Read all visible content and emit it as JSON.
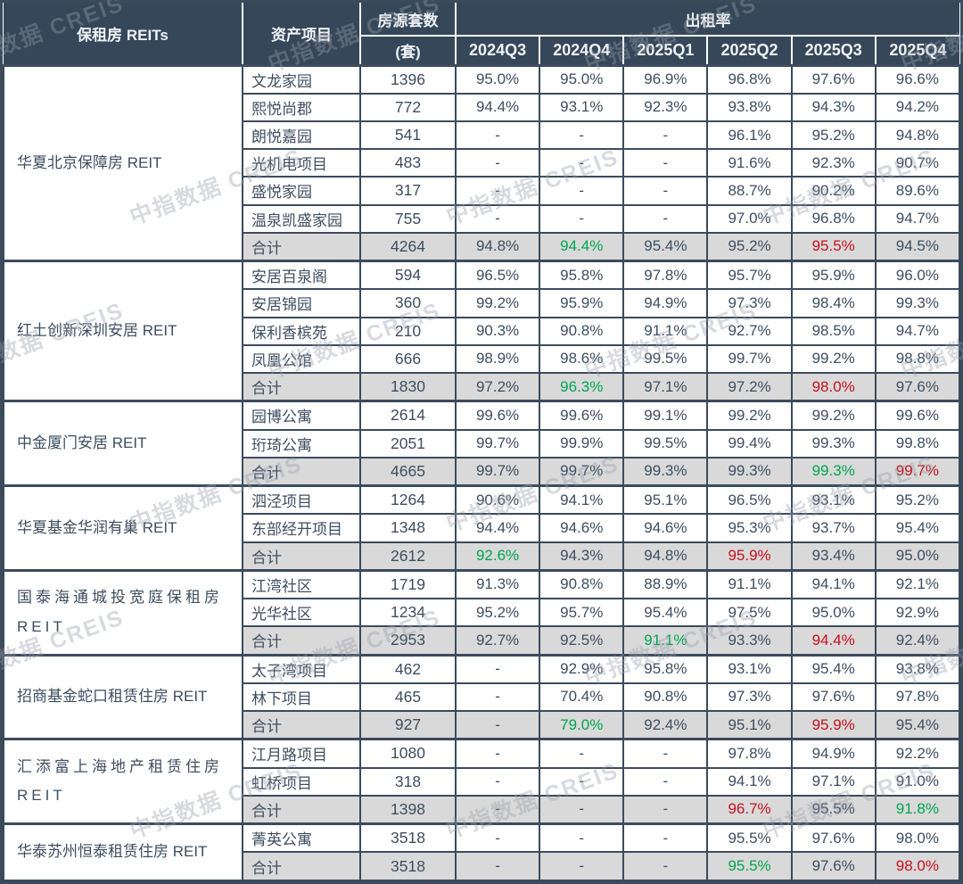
{
  "watermark": {
    "text": "中指数据 CREIS"
  },
  "colors": {
    "header_bg": "#36475A",
    "header_text": "#EFF3F6",
    "body_text": "#3E4E60",
    "border": "#3C4B5C",
    "total_row_bg": "#D9D9D9",
    "highlight_green": "#00A651",
    "highlight_red": "#C8101E"
  },
  "chart_data": {
    "type": "table",
    "headers": {
      "reits": "保租房 REITs",
      "asset": "资产项目",
      "units_line1": "房源套数",
      "units_line2": "(套)",
      "occupancy": "出租率",
      "quarters": [
        "2024Q3",
        "2024Q4",
        "2025Q1",
        "2025Q2",
        "2025Q3",
        "2025Q4"
      ]
    },
    "total_label": "合计",
    "groups": [
      {
        "reit": "华夏北京保障房 REIT",
        "projects": [
          {
            "name": "文龙家园",
            "units": "1396",
            "rates": [
              "95.0%",
              "95.0%",
              "96.9%",
              "96.8%",
              "97.6%",
              "96.6%"
            ]
          },
          {
            "name": "熙悦尚郡",
            "units": "772",
            "rates": [
              "94.4%",
              "93.1%",
              "92.3%",
              "93.8%",
              "94.3%",
              "94.2%"
            ]
          },
          {
            "name": "朗悦嘉园",
            "units": "541",
            "rates": [
              "-",
              "-",
              "-",
              "96.1%",
              "95.2%",
              "94.8%"
            ]
          },
          {
            "name": "光机电项目",
            "units": "483",
            "rates": [
              "-",
              "-",
              "-",
              "91.6%",
              "92.3%",
              "90.7%"
            ]
          },
          {
            "name": "盛悦家园",
            "units": "317",
            "rates": [
              "-",
              "-",
              "-",
              "88.7%",
              "90.2%",
              "89.6%"
            ]
          },
          {
            "name": "温泉凯盛家园",
            "units": "755",
            "rates": [
              "-",
              "-",
              "-",
              "97.0%",
              "96.8%",
              "94.7%"
            ]
          }
        ],
        "total": {
          "units": "4264",
          "rates": [
            "94.8%",
            "94.4%",
            "95.4%",
            "95.2%",
            "95.5%",
            "94.5%"
          ],
          "colors": [
            "",
            "green",
            "",
            "",
            "red",
            ""
          ]
        }
      },
      {
        "reit": "红土创新深圳安居 REIT",
        "projects": [
          {
            "name": "安居百泉阁",
            "units": "594",
            "rates": [
              "96.5%",
              "95.8%",
              "97.8%",
              "95.7%",
              "95.9%",
              "96.0%"
            ]
          },
          {
            "name": "安居锦园",
            "units": "360",
            "rates": [
              "99.2%",
              "95.9%",
              "94.9%",
              "97.3%",
              "98.4%",
              "99.3%"
            ]
          },
          {
            "name": "保利香槟苑",
            "units": "210",
            "rates": [
              "90.3%",
              "90.8%",
              "91.1%",
              "92.7%",
              "98.5%",
              "94.7%"
            ]
          },
          {
            "name": "凤凰公馆",
            "units": "666",
            "rates": [
              "98.9%",
              "98.6%",
              "99.5%",
              "99.7%",
              "99.2%",
              "98.8%"
            ]
          }
        ],
        "total": {
          "units": "1830",
          "rates": [
            "97.2%",
            "96.3%",
            "97.1%",
            "97.2%",
            "98.0%",
            "97.6%"
          ],
          "colors": [
            "",
            "green",
            "",
            "",
            "red",
            ""
          ]
        }
      },
      {
        "reit": "中金厦门安居 REIT",
        "projects": [
          {
            "name": "园博公寓",
            "units": "2614",
            "rates": [
              "99.6%",
              "99.6%",
              "99.1%",
              "99.2%",
              "99.2%",
              "99.6%"
            ]
          },
          {
            "name": "珩琦公寓",
            "units": "2051",
            "rates": [
              "99.7%",
              "99.9%",
              "99.5%",
              "99.4%",
              "99.3%",
              "99.8%"
            ]
          }
        ],
        "total": {
          "units": "4665",
          "rates": [
            "99.7%",
            "99.7%",
            "99.3%",
            "99.3%",
            "99.3%",
            "99.7%"
          ],
          "colors": [
            "",
            "",
            "",
            "",
            "green",
            "red"
          ]
        }
      },
      {
        "reit": "华夏基金华润有巢 REIT",
        "projects": [
          {
            "name": "泗泾项目",
            "units": "1264",
            "rates": [
              "90.6%",
              "94.1%",
              "95.1%",
              "96.5%",
              "93.1%",
              "95.2%"
            ]
          },
          {
            "name": "东部经开项目",
            "units": "1348",
            "rates": [
              "94.4%",
              "94.6%",
              "94.6%",
              "95.3%",
              "93.7%",
              "95.4%"
            ]
          }
        ],
        "total": {
          "units": "2612",
          "rates": [
            "92.6%",
            "94.3%",
            "94.8%",
            "95.9%",
            "93.4%",
            "95.0%"
          ],
          "colors": [
            "green",
            "",
            "",
            "red",
            "",
            ""
          ]
        }
      },
      {
        "reit": "国泰海通城投宽庭保租房\nREIT",
        "projects": [
          {
            "name": "江湾社区",
            "units": "1719",
            "rates": [
              "91.3%",
              "90.8%",
              "88.9%",
              "91.1%",
              "94.1%",
              "92.1%"
            ]
          },
          {
            "name": "光华社区",
            "units": "1234",
            "rates": [
              "95.2%",
              "95.7%",
              "95.4%",
              "97.5%",
              "95.0%",
              "92.9%"
            ]
          }
        ],
        "total": {
          "units": "2953",
          "rates": [
            "92.7%",
            "92.5%",
            "91.1%",
            "93.3%",
            "94.4%",
            "92.4%"
          ],
          "colors": [
            "",
            "",
            "green",
            "",
            "red",
            ""
          ]
        }
      },
      {
        "reit": "招商基金蛇口租赁住房 REIT",
        "projects": [
          {
            "name": "太子湾项目",
            "units": "462",
            "rates": [
              "-",
              "92.9%",
              "95.8%",
              "93.1%",
              "95.4%",
              "93.8%"
            ]
          },
          {
            "name": "林下项目",
            "units": "465",
            "rates": [
              "-",
              "70.4%",
              "90.8%",
              "97.3%",
              "97.6%",
              "97.8%"
            ]
          }
        ],
        "total": {
          "units": "927",
          "rates": [
            "-",
            "79.0%",
            "92.4%",
            "95.1%",
            "95.9%",
            "95.4%"
          ],
          "colors": [
            "",
            "green",
            "",
            "",
            "red",
            ""
          ]
        }
      },
      {
        "reit": "汇添富上海地产租赁住房\nREIT",
        "projects": [
          {
            "name": "江月路项目",
            "units": "1080",
            "rates": [
              "-",
              "-",
              "-",
              "97.8%",
              "94.9%",
              "92.2%"
            ]
          },
          {
            "name": "虹桥项目",
            "units": "318",
            "rates": [
              "-",
              "-",
              "-",
              "94.1%",
              "97.1%",
              "91.0%"
            ]
          }
        ],
        "total": {
          "units": "1398",
          "rates": [
            "-",
            "-",
            "-",
            "96.7%",
            "95.5%",
            "91.8%"
          ],
          "colors": [
            "",
            "",
            "",
            "red",
            "",
            "green"
          ]
        }
      },
      {
        "reit": "华泰苏州恒泰租赁住房 REIT",
        "projects": [
          {
            "name": "菁英公寓",
            "units": "3518",
            "rates": [
              "-",
              "-",
              "-",
              "95.5%",
              "97.6%",
              "98.0%"
            ]
          }
        ],
        "total": {
          "units": "3518",
          "rates": [
            "-",
            "-",
            "-",
            "95.5%",
            "97.6%",
            "98.0%"
          ],
          "colors": [
            "",
            "",
            "",
            "green",
            "",
            "red"
          ]
        }
      }
    ]
  }
}
